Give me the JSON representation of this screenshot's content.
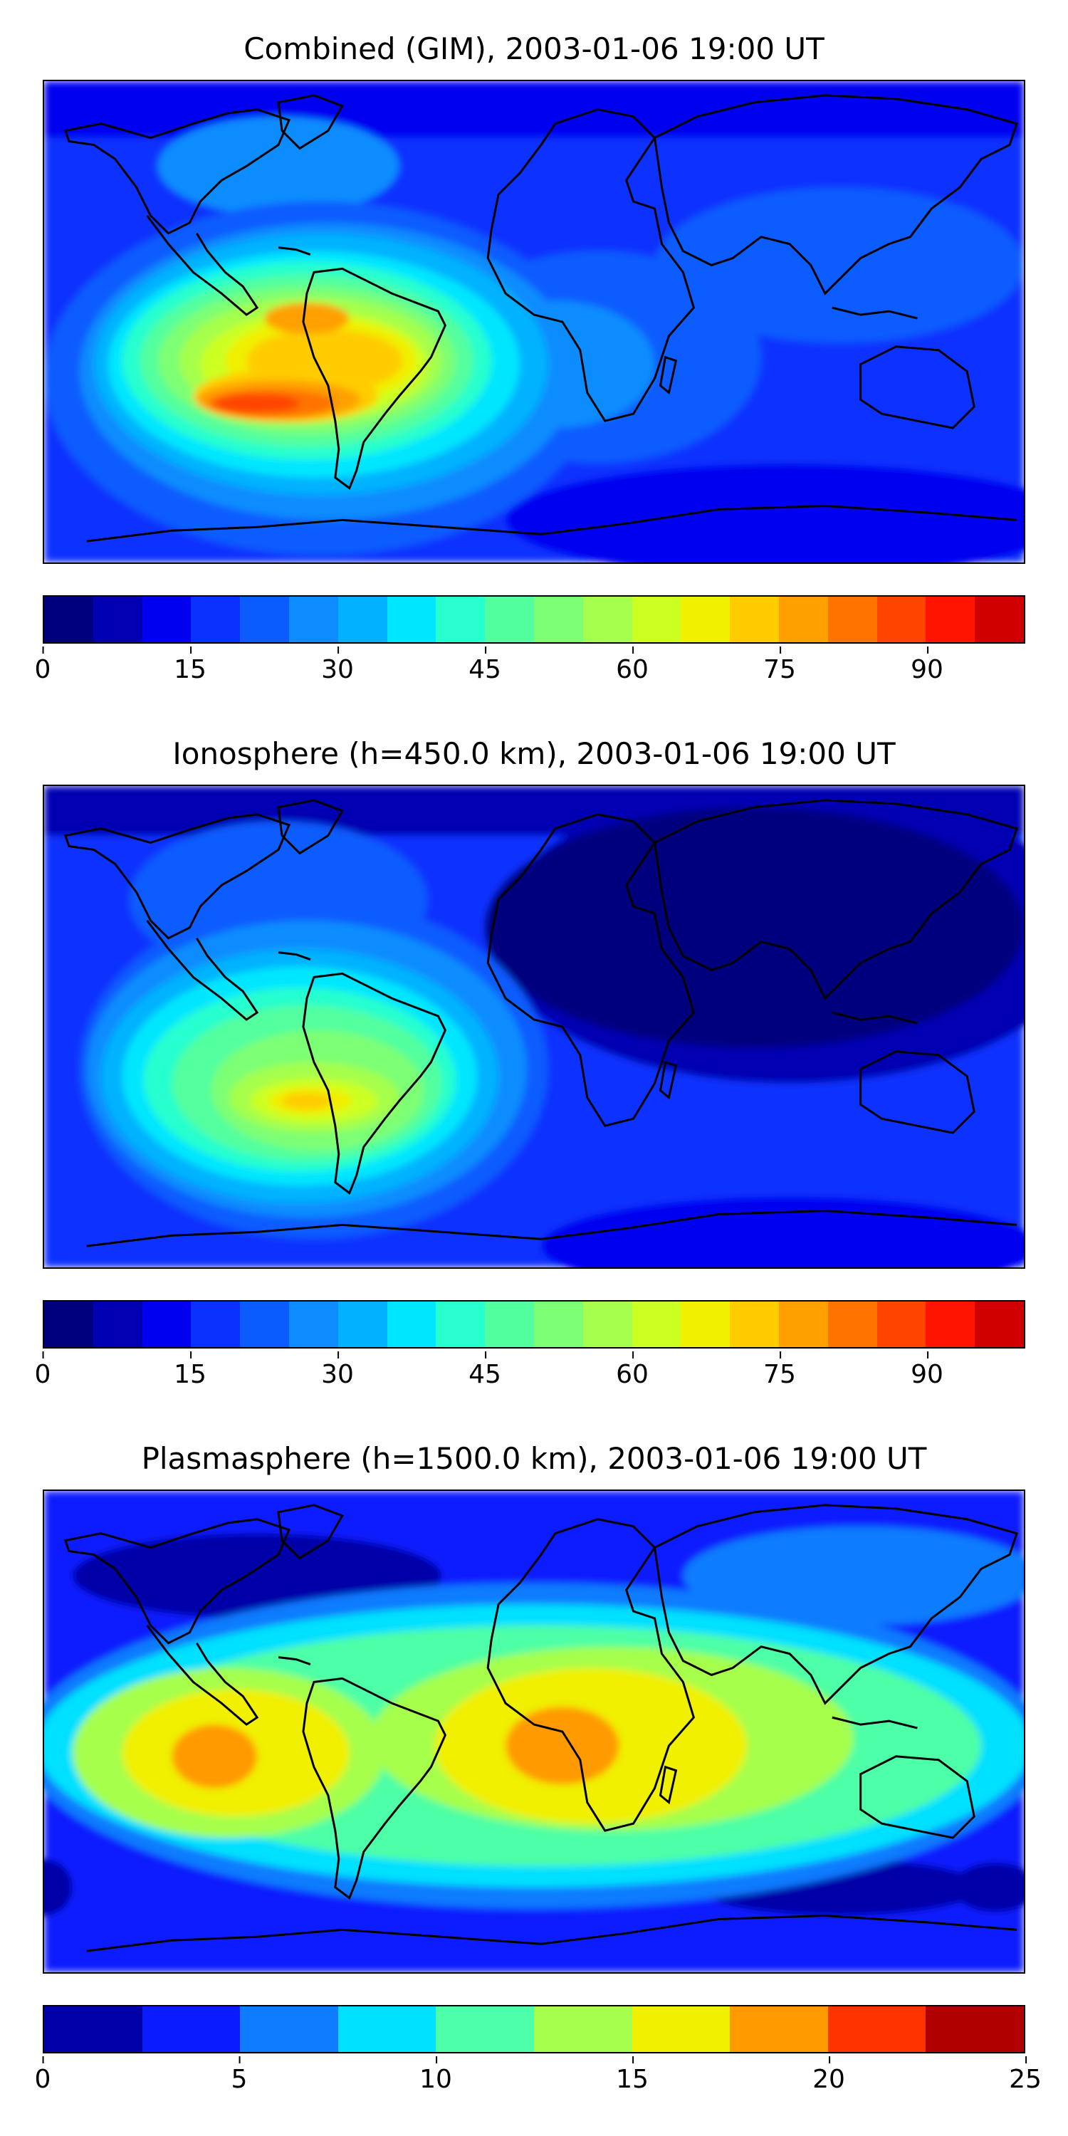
{
  "chart_data": [
    {
      "type": "heatmap",
      "title": "Combined (GIM), 2003-01-06 19:00 UT",
      "xlabel": "",
      "ylabel": "",
      "colorbar": {
        "levels": [
          0,
          5,
          10,
          15,
          20,
          25,
          30,
          35,
          40,
          45,
          50,
          55,
          60,
          65,
          70,
          75,
          80,
          85,
          90,
          95,
          100
        ],
        "ticks": [
          0,
          15,
          30,
          45,
          60,
          75,
          90
        ],
        "tick_labels": [
          "0",
          "15",
          "30",
          "45",
          "60",
          "75",
          "90"
        ],
        "colors": [
          "#00007f",
          "#0000b2",
          "#0000f0",
          "#0a30ff",
          "#0a5cff",
          "#0d8cff",
          "#00b2ff",
          "#00e6ff",
          "#27ffcf",
          "#52ff9f",
          "#7dff75",
          "#a5ff4c",
          "#ccff22",
          "#f0f000",
          "#ffcc00",
          "#ffa000",
          "#ff7300",
          "#ff4400",
          "#ff1400",
          "#d10000",
          "#9a0000"
        ]
      },
      "features": [
        {
          "region": "South Pacific west of Chile",
          "max_value": 85
        },
        {
          "region": "northern South America",
          "max_value": 75
        },
        {
          "region": "high latitudes",
          "min_value": 10
        }
      ],
      "grid": false,
      "legend": "colorbar-below"
    },
    {
      "type": "heatmap",
      "title": "Ionosphere  (h=450.0 km), 2003-01-06 19:00 UT",
      "xlabel": "",
      "ylabel": "",
      "colorbar": {
        "levels": [
          0,
          5,
          10,
          15,
          20,
          25,
          30,
          35,
          40,
          45,
          50,
          55,
          60,
          65,
          70,
          75,
          80,
          85,
          90,
          95,
          100
        ],
        "ticks": [
          0,
          15,
          30,
          45,
          60,
          75,
          90
        ],
        "tick_labels": [
          "0",
          "15",
          "30",
          "45",
          "60",
          "75",
          "90"
        ],
        "colors": [
          "#00007f",
          "#0000b2",
          "#0000f0",
          "#0a30ff",
          "#0a5cff",
          "#0d8cff",
          "#00b2ff",
          "#00e6ff",
          "#27ffcf",
          "#52ff9f",
          "#7dff75",
          "#a5ff4c",
          "#ccff22",
          "#f0f000",
          "#ffcc00",
          "#ffa000",
          "#ff7300",
          "#ff4400",
          "#ff1400",
          "#d10000",
          "#9a0000"
        ]
      },
      "features": [
        {
          "region": "southern South America",
          "max_value": 70
        },
        {
          "region": "Eurasia night side",
          "min_value": 5
        }
      ],
      "grid": false,
      "legend": "colorbar-below"
    },
    {
      "type": "heatmap",
      "title": "Plasmasphere (h=1500.0 km), 2003-01-06 19:00 UT",
      "xlabel": "",
      "ylabel": "",
      "colorbar": {
        "levels": [
          0,
          2.5,
          5,
          7.5,
          10,
          12.5,
          15,
          17.5,
          20,
          22.5,
          25
        ],
        "ticks": [
          0,
          5,
          10,
          15,
          20,
          25
        ],
        "tick_labels": [
          "0",
          "5",
          "10",
          "15",
          "20",
          "25"
        ],
        "colors": [
          "#0000a8",
          "#0a1cff",
          "#0f7bff",
          "#00e0ff",
          "#4dffa6",
          "#a5ff4c",
          "#f0f000",
          "#ff9a00",
          "#ff3300",
          "#b00000"
        ]
      },
      "features": [
        {
          "region": "central Africa",
          "max_value": 20
        },
        {
          "region": "eastern Pacific",
          "max_value": 20
        },
        {
          "region": "high latitudes",
          "min_value": 2.5
        }
      ],
      "grid": false,
      "legend": "colorbar-below"
    }
  ]
}
